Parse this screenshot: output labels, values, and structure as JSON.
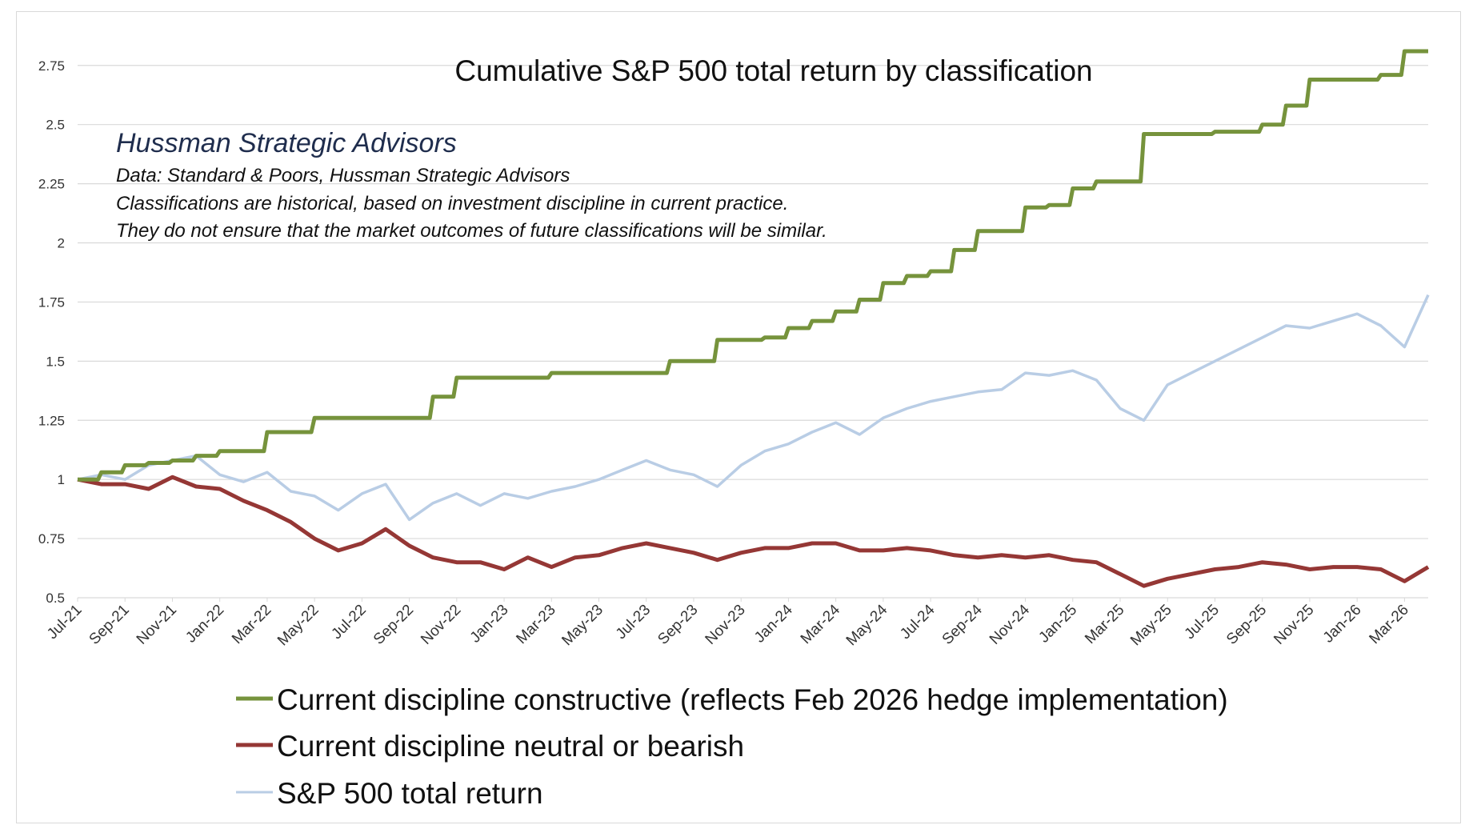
{
  "chart_data": {
    "type": "line",
    "title": "Cumulative S&P 500 total return by classification",
    "annotation": {
      "heading": "Hussman Strategic Advisors",
      "lines": [
        "Data: Standard & Poors, Hussman Strategic Advisors",
        "Classifications are historical,  based on investment discipline in current practice.",
        "They do not ensure that the market outcomes of future classifications will be similar."
      ]
    },
    "xlabel": "",
    "ylabel": "",
    "ylim": [
      0.5,
      2.8
    ],
    "yticks": [
      "0.5",
      "0.75",
      "1",
      "1.25",
      "1.5",
      "1.75",
      "2",
      "2.25",
      "2.5",
      "2.75"
    ],
    "ytick_values": [
      0.5,
      0.75,
      1,
      1.25,
      1.5,
      1.75,
      2,
      2.25,
      2.5,
      2.75
    ],
    "xticks": [
      "Jul-21",
      "Sep-21",
      "Nov-21",
      "Jan-22",
      "Mar-22",
      "May-22",
      "Jul-22",
      "Sep-22",
      "Nov-22",
      "Jan-23",
      "Mar-23",
      "May-23",
      "Jul-23",
      "Sep-23",
      "Nov-23",
      "Jan-24",
      "Mar-24",
      "May-24",
      "Jul-24",
      "Sep-24",
      "Nov-24",
      "Jan-25",
      "Mar-25",
      "May-25",
      "Jul-25",
      "Sep-25",
      "Nov-25",
      "Jan-26",
      "Mar-26"
    ],
    "x_start": "Jul-21",
    "x_end": "Apr-26",
    "grid": true,
    "legend_position": "bottom",
    "series": [
      {
        "name": "Current discipline constructive (reflects Feb 2026 hedge implementation)",
        "color": "#76933c",
        "x": [
          "2021-07",
          "2021-08",
          "2021-09",
          "2021-10",
          "2021-11",
          "2021-12",
          "2022-01",
          "2022-02",
          "2022-03",
          "2022-04",
          "2022-05",
          "2022-06",
          "2022-07",
          "2022-08",
          "2022-09",
          "2022-10",
          "2022-11",
          "2022-12",
          "2023-01",
          "2023-02",
          "2023-03",
          "2023-04",
          "2023-05",
          "2023-06",
          "2023-07",
          "2023-08",
          "2023-09",
          "2023-10",
          "2023-11",
          "2023-12",
          "2024-01",
          "2024-02",
          "2024-03",
          "2024-04",
          "2024-05",
          "2024-06",
          "2024-07",
          "2024-08",
          "2024-09",
          "2024-10",
          "2024-11",
          "2024-12",
          "2025-01",
          "2025-02",
          "2025-03",
          "2025-04",
          "2025-05",
          "2025-06",
          "2025-07",
          "2025-08",
          "2025-09",
          "2025-10",
          "2025-11",
          "2025-12",
          "2026-01",
          "2026-02",
          "2026-03",
          "2026-04"
        ],
        "values": [
          1.0,
          1.03,
          1.06,
          1.07,
          1.08,
          1.1,
          1.12,
          1.12,
          1.2,
          1.2,
          1.26,
          1.26,
          1.26,
          1.26,
          1.26,
          1.35,
          1.43,
          1.43,
          1.43,
          1.43,
          1.45,
          1.45,
          1.45,
          1.45,
          1.45,
          1.5,
          1.5,
          1.59,
          1.59,
          1.6,
          1.64,
          1.67,
          1.71,
          1.76,
          1.83,
          1.86,
          1.88,
          1.97,
          2.05,
          2.05,
          2.15,
          2.16,
          2.23,
          2.26,
          2.26,
          2.46,
          2.46,
          2.46,
          2.47,
          2.47,
          2.5,
          2.58,
          2.69,
          2.69,
          2.69,
          2.71,
          2.81,
          2.81
        ]
      },
      {
        "name": "Current discipline neutral or bearish",
        "color": "#953735",
        "x": [
          "2021-07",
          "2021-08",
          "2021-09",
          "2021-10",
          "2021-11",
          "2021-12",
          "2022-01",
          "2022-02",
          "2022-03",
          "2022-04",
          "2022-05",
          "2022-06",
          "2022-07",
          "2022-08",
          "2022-09",
          "2022-10",
          "2022-11",
          "2022-12",
          "2023-01",
          "2023-02",
          "2023-03",
          "2023-04",
          "2023-05",
          "2023-06",
          "2023-07",
          "2023-08",
          "2023-09",
          "2023-10",
          "2023-11",
          "2023-12",
          "2024-01",
          "2024-02",
          "2024-03",
          "2024-04",
          "2024-05",
          "2024-06",
          "2024-07",
          "2024-08",
          "2024-09",
          "2024-10",
          "2024-11",
          "2024-12",
          "2025-01",
          "2025-02",
          "2025-03",
          "2025-04",
          "2025-05",
          "2025-06",
          "2025-07",
          "2025-08",
          "2025-09",
          "2025-10",
          "2025-11",
          "2025-12",
          "2026-01",
          "2026-02",
          "2026-03",
          "2026-04"
        ],
        "values": [
          1.0,
          0.98,
          0.98,
          0.96,
          1.01,
          0.97,
          0.96,
          0.91,
          0.87,
          0.82,
          0.75,
          0.7,
          0.73,
          0.79,
          0.72,
          0.67,
          0.65,
          0.65,
          0.62,
          0.67,
          0.63,
          0.67,
          0.68,
          0.71,
          0.73,
          0.71,
          0.69,
          0.66,
          0.69,
          0.71,
          0.71,
          0.73,
          0.73,
          0.7,
          0.7,
          0.71,
          0.7,
          0.68,
          0.67,
          0.68,
          0.67,
          0.68,
          0.66,
          0.65,
          0.6,
          0.55,
          0.58,
          0.6,
          0.62,
          0.63,
          0.65,
          0.64,
          0.62,
          0.63,
          0.63,
          0.62,
          0.57,
          0.63
        ]
      },
      {
        "name": "S&P 500 total return",
        "color": "#b9cde5",
        "x": [
          "2021-07",
          "2021-08",
          "2021-09",
          "2021-10",
          "2021-11",
          "2021-12",
          "2022-01",
          "2022-02",
          "2022-03",
          "2022-04",
          "2022-05",
          "2022-06",
          "2022-07",
          "2022-08",
          "2022-09",
          "2022-10",
          "2022-11",
          "2022-12",
          "2023-01",
          "2023-02",
          "2023-03",
          "2023-04",
          "2023-05",
          "2023-06",
          "2023-07",
          "2023-08",
          "2023-09",
          "2023-10",
          "2023-11",
          "2023-12",
          "2024-01",
          "2024-02",
          "2024-03",
          "2024-04",
          "2024-05",
          "2024-06",
          "2024-07",
          "2024-08",
          "2024-09",
          "2024-10",
          "2024-11",
          "2024-12",
          "2025-01",
          "2025-02",
          "2025-03",
          "2025-04",
          "2025-05",
          "2025-06",
          "2025-07",
          "2025-08",
          "2025-09",
          "2025-10",
          "2025-11",
          "2025-12",
          "2026-01",
          "2026-02",
          "2026-03",
          "2026-04"
        ],
        "values": [
          1.0,
          1.02,
          1.0,
          1.06,
          1.08,
          1.1,
          1.02,
          0.99,
          1.03,
          0.95,
          0.93,
          0.87,
          0.94,
          0.98,
          0.83,
          0.9,
          0.94,
          0.89,
          0.94,
          0.92,
          0.95,
          0.97,
          1.0,
          1.04,
          1.08,
          1.04,
          1.02,
          0.97,
          1.06,
          1.12,
          1.15,
          1.2,
          1.24,
          1.19,
          1.26,
          1.3,
          1.33,
          1.35,
          1.37,
          1.38,
          1.45,
          1.44,
          1.46,
          1.42,
          1.3,
          1.25,
          1.4,
          1.45,
          1.5,
          1.55,
          1.6,
          1.65,
          1.64,
          1.67,
          1.7,
          1.65,
          1.56,
          1.78
        ]
      }
    ]
  }
}
